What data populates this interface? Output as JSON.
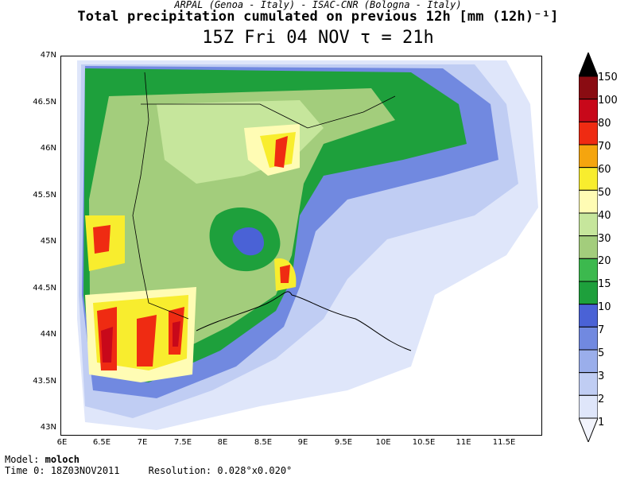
{
  "header": {
    "credit": "ARPAL (Genoa - Italy)  -  ISAC-CNR (Bologna - Italy)",
    "title": "Total precipitation cumulated on previous 12h [mm (12h)⁻¹]",
    "subtitle": "15Z Fri 04 NOV  τ = 21h"
  },
  "map": {
    "lat_labels": [
      "47N",
      "46.5N",
      "46N",
      "45.5N",
      "45N",
      "44.5N",
      "44N",
      "43.5N",
      "43N"
    ],
    "lon_labels": [
      "6E",
      "6.5E",
      "7E",
      "7.5E",
      "8E",
      "8.5E",
      "9E",
      "9.5E",
      "10E",
      "10.5E",
      "11E",
      "11.5E"
    ],
    "lat_range": [
      43,
      47
    ],
    "lon_range": [
      6,
      12
    ]
  },
  "colorbar": {
    "levels": [
      "1",
      "2",
      "3",
      "5",
      "7",
      "10",
      "15",
      "20",
      "30",
      "40",
      "50",
      "60",
      "70",
      "80",
      "100",
      "150"
    ],
    "colors": [
      "#f2f4fc",
      "#dfe6fa",
      "#c0cdf3",
      "#9aaeeb",
      "#7189e0",
      "#4a62d6",
      "#1ea03c",
      "#3cb94e",
      "#a3cd7c",
      "#c6e69c",
      "#fffcb4",
      "#f8ed2e",
      "#f5a50e",
      "#ef2b12",
      "#c8081a",
      "#8a0c12",
      "#000000"
    ]
  },
  "footer": {
    "model_label": "Model:",
    "model_value": "moloch",
    "time_label": "Time 0:",
    "time_value": "18Z03NOV2011",
    "resolution_label": "Resolution:",
    "resolution_value": "0.028°x0.020°"
  }
}
